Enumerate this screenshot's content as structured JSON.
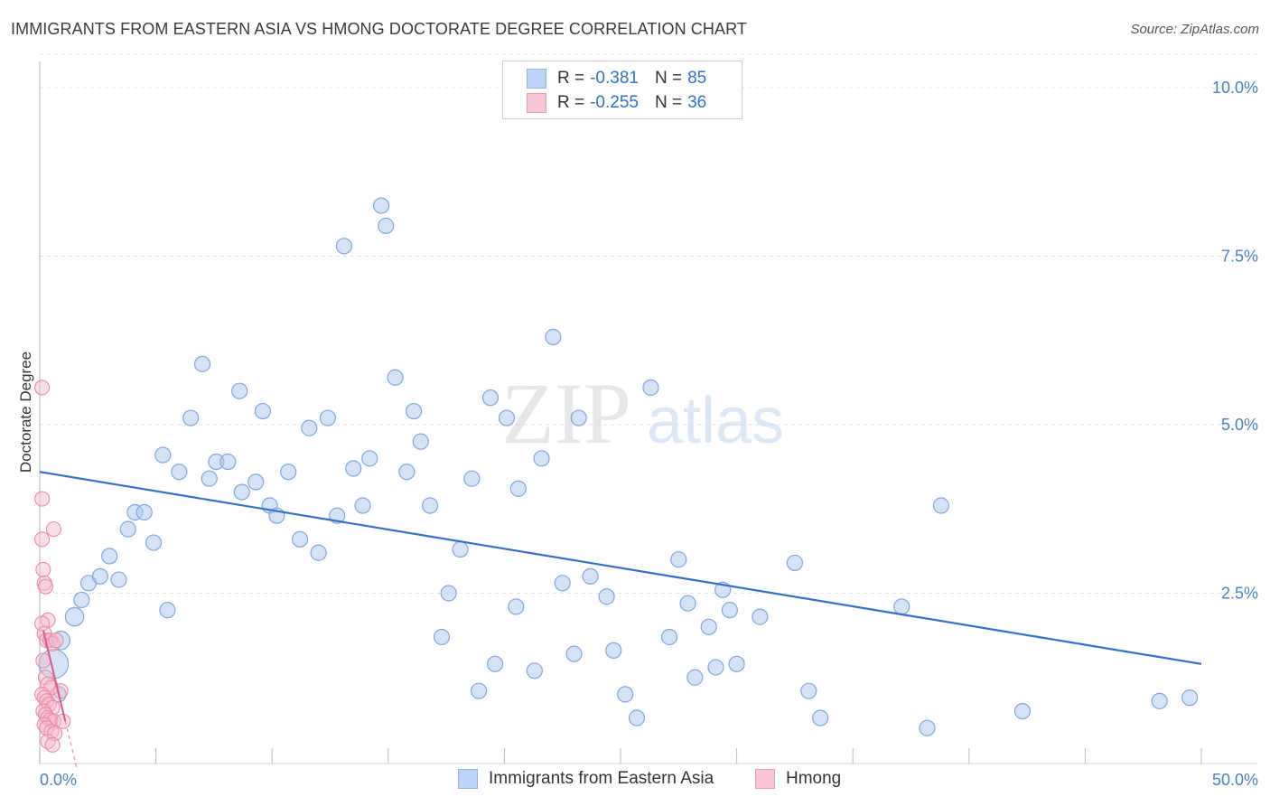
{
  "header": {
    "title": "IMMIGRANTS FROM EASTERN ASIA VS HMONG DOCTORATE DEGREE CORRELATION CHART",
    "source": "Source: ZipAtlas.com"
  },
  "legend": {
    "rows": [
      {
        "r_label": "R = ",
        "r_value": "-0.381",
        "n_label": "N = ",
        "n_value": "85"
      },
      {
        "r_label": "R = ",
        "r_value": "-0.255",
        "n_label": "N = ",
        "n_value": "36"
      }
    ]
  },
  "bottom_legend": {
    "series1": "Immigrants from Eastern Asia",
    "series2": "Hmong"
  },
  "watermark": {
    "zip": "ZIP",
    "atlas": "atlas"
  },
  "colors": {
    "blue_fill": "#a9c8f0",
    "blue_stroke": "#7fa8de",
    "blue_line": "#2f6fd0",
    "pink_fill": "#f6b8cb",
    "pink_stroke": "#ea8aa8",
    "pink_line": "#e0558a",
    "tick_text": "#4a7fc9"
  },
  "chart_data": {
    "type": "scatter",
    "title": "IMMIGRANTS FROM EASTERN ASIA VS HMONG DOCTORATE DEGREE CORRELATION CHART",
    "xlabel": "",
    "ylabel": "Doctorate Degree",
    "xlim": [
      0,
      50
    ],
    "ylim": [
      0,
      10.5
    ],
    "x_tick_labels": [
      "0.0%",
      "50.0%"
    ],
    "y_ticks": [
      2.5,
      5.0,
      7.5,
      10.0
    ],
    "y_tick_labels": [
      "2.5%",
      "5.0%",
      "7.5%",
      "10.0%"
    ],
    "grid": true,
    "legend_position": "top-center",
    "series": [
      {
        "name": "Immigrants from Eastern Asia",
        "r": -0.381,
        "n": 85,
        "trend": {
          "x": [
            0,
            50
          ],
          "y": [
            4.3,
            1.45
          ]
        },
        "points": [
          [
            0.6,
            1.45,
            1.9
          ],
          [
            0.9,
            1.8,
            1.2
          ],
          [
            1.5,
            2.15,
            1.2
          ],
          [
            1.8,
            2.4,
            1
          ],
          [
            2.1,
            2.65,
            1
          ],
          [
            2.6,
            2.75,
            1
          ],
          [
            3.0,
            3.05,
            1
          ],
          [
            3.4,
            2.7,
            1
          ],
          [
            3.8,
            3.45,
            1
          ],
          [
            4.1,
            3.7,
            1
          ],
          [
            4.5,
            3.7,
            1
          ],
          [
            4.9,
            3.25,
            1
          ],
          [
            5.3,
            4.55,
            1
          ],
          [
            5.5,
            2.25,
            1
          ],
          [
            6.0,
            4.3,
            1
          ],
          [
            6.5,
            5.1,
            1
          ],
          [
            7.0,
            5.9,
            1
          ],
          [
            7.3,
            4.2,
            1
          ],
          [
            7.6,
            4.45,
            1
          ],
          [
            8.1,
            4.45,
            1
          ],
          [
            8.6,
            5.5,
            1
          ],
          [
            8.7,
            4.0,
            1
          ],
          [
            9.3,
            4.15,
            1
          ],
          [
            9.6,
            5.2,
            1
          ],
          [
            9.9,
            3.8,
            1
          ],
          [
            10.2,
            3.65,
            1
          ],
          [
            10.7,
            4.3,
            1
          ],
          [
            11.2,
            3.3,
            1
          ],
          [
            11.6,
            4.95,
            1
          ],
          [
            12.0,
            3.1,
            1
          ],
          [
            12.4,
            5.1,
            1
          ],
          [
            12.8,
            3.65,
            1
          ],
          [
            13.1,
            7.65,
            1
          ],
          [
            13.5,
            4.35,
            1
          ],
          [
            13.9,
            3.8,
            1
          ],
          [
            14.2,
            4.5,
            1
          ],
          [
            14.7,
            8.25,
            1
          ],
          [
            14.9,
            7.95,
            1
          ],
          [
            15.3,
            5.7,
            1
          ],
          [
            15.8,
            4.3,
            1
          ],
          [
            16.1,
            5.2,
            1
          ],
          [
            16.4,
            4.75,
            1
          ],
          [
            16.8,
            3.8,
            1
          ],
          [
            17.3,
            1.85,
            1
          ],
          [
            17.6,
            2.5,
            1
          ],
          [
            18.1,
            3.15,
            1
          ],
          [
            18.6,
            4.2,
            1
          ],
          [
            18.9,
            1.05,
            1
          ],
          [
            19.4,
            5.4,
            1
          ],
          [
            19.6,
            1.45,
            1
          ],
          [
            20.1,
            5.1,
            1
          ],
          [
            20.5,
            2.3,
            1
          ],
          [
            20.6,
            4.05,
            1
          ],
          [
            21.3,
            1.35,
            1
          ],
          [
            21.6,
            4.5,
            1
          ],
          [
            22.1,
            6.3,
            1
          ],
          [
            22.5,
            2.65,
            1
          ],
          [
            23.0,
            1.6,
            1
          ],
          [
            23.2,
            5.1,
            1
          ],
          [
            23.7,
            2.75,
            1
          ],
          [
            24.4,
            2.45,
            1
          ],
          [
            24.7,
            1.65,
            1
          ],
          [
            25.2,
            1.0,
            1
          ],
          [
            25.7,
            0.65,
            1
          ],
          [
            26.3,
            5.55,
            1
          ],
          [
            27.1,
            1.85,
            1
          ],
          [
            27.5,
            3.0,
            1
          ],
          [
            27.9,
            2.35,
            1
          ],
          [
            28.2,
            1.25,
            1
          ],
          [
            28.8,
            2.0,
            1
          ],
          [
            29.1,
            1.4,
            1
          ],
          [
            29.4,
            2.55,
            1
          ],
          [
            29.7,
            2.25,
            1
          ],
          [
            30.0,
            1.45,
            1
          ],
          [
            31.0,
            2.15,
            1
          ],
          [
            32.5,
            2.95,
            1
          ],
          [
            33.1,
            1.05,
            1
          ],
          [
            33.6,
            0.65,
            1
          ],
          [
            37.1,
            2.3,
            1
          ],
          [
            38.2,
            0.5,
            1
          ],
          [
            38.8,
            3.8,
            1
          ],
          [
            42.3,
            0.75,
            1
          ],
          [
            48.2,
            0.9,
            1
          ],
          [
            49.5,
            0.95,
            1
          ],
          [
            0.8,
            1.0,
            1
          ]
        ]
      },
      {
        "name": "Hmong",
        "r": -0.255,
        "n": 36,
        "trend": {
          "x": [
            0.15,
            1.1
          ],
          "y": [
            1.95,
            0.6
          ]
        },
        "trend_ext": {
          "x": [
            1.1,
            1.6
          ],
          "y": [
            0.6,
            -0.1
          ]
        },
        "points": [
          [
            0.1,
            5.55
          ],
          [
            0.1,
            3.9
          ],
          [
            0.1,
            3.3
          ],
          [
            0.15,
            2.85
          ],
          [
            0.2,
            2.65
          ],
          [
            0.25,
            2.6
          ],
          [
            0.35,
            2.1
          ],
          [
            0.1,
            2.05
          ],
          [
            0.2,
            1.9
          ],
          [
            0.3,
            1.8
          ],
          [
            0.45,
            1.8
          ],
          [
            0.55,
            1.75
          ],
          [
            0.7,
            1.8
          ],
          [
            0.15,
            1.5
          ],
          [
            0.25,
            1.25
          ],
          [
            0.35,
            1.15
          ],
          [
            0.5,
            1.1
          ],
          [
            0.9,
            1.05
          ],
          [
            0.1,
            1.0
          ],
          [
            0.2,
            0.95
          ],
          [
            0.3,
            0.9
          ],
          [
            0.4,
            0.85
          ],
          [
            0.55,
            0.8
          ],
          [
            0.15,
            0.75
          ],
          [
            0.25,
            0.7
          ],
          [
            0.35,
            0.65
          ],
          [
            0.45,
            0.62
          ],
          [
            0.6,
            0.6
          ],
          [
            0.2,
            0.55
          ],
          [
            0.3,
            0.5
          ],
          [
            0.5,
            0.45
          ],
          [
            0.65,
            0.42
          ],
          [
            1.0,
            0.6
          ],
          [
            0.35,
            0.3
          ],
          [
            0.55,
            0.25
          ],
          [
            0.6,
            3.45
          ]
        ]
      }
    ]
  }
}
